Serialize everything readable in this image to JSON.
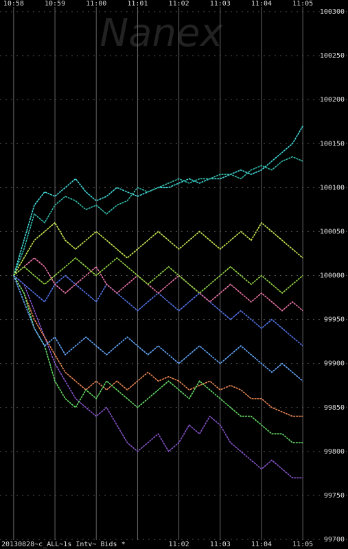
{
  "chart_data": {
    "type": "line",
    "watermark": "Nanex",
    "caption": "20130828~c_ALL~1s Intv~ Bids *",
    "x": [
      658,
      658.25,
      658.5,
      658.75,
      659,
      659.25,
      659.5,
      659.75,
      660,
      660.25,
      660.5,
      660.75,
      661,
      661.25,
      661.5,
      661.75,
      662,
      662.25,
      662.5,
      662.75,
      663,
      663.25,
      663.5,
      663.75,
      664,
      664.25,
      664.5,
      664.75,
      665
    ],
    "xlim": [
      657.67,
      665.23
    ],
    "xticks": [
      {
        "value": 658,
        "label": "10:58"
      },
      {
        "value": 659,
        "label": "10:59"
      },
      {
        "value": 660,
        "label": "11:00"
      },
      {
        "value": 661,
        "label": "11:01"
      },
      {
        "value": 662,
        "label": "11:02"
      },
      {
        "value": 663,
        "label": "11:03"
      },
      {
        "value": 664,
        "label": "11:04"
      },
      {
        "value": 665,
        "label": "11:05"
      }
    ],
    "ylim": [
      99700,
      100300
    ],
    "yticks": [
      99700,
      99750,
      99800,
      99850,
      99900,
      99950,
      100000,
      100050,
      100100,
      100150,
      100200,
      100250,
      100300
    ],
    "grid": true,
    "series": [
      {
        "color": "#44dddd",
        "values": [
          100000,
          100040,
          100080,
          100095,
          100090,
          100100,
          100110,
          100095,
          100085,
          100090,
          100100,
          100095,
          100090,
          100095,
          100100,
          100100,
          100105,
          100110,
          100105,
          100110,
          100110,
          100115,
          100120,
          100115,
          100120,
          100130,
          100140,
          100150,
          100170
        ]
      },
      {
        "color": "#33bbaa",
        "values": [
          100000,
          100030,
          100070,
          100060,
          100080,
          100090,
          100085,
          100075,
          100080,
          100070,
          100080,
          100085,
          100100,
          100095,
          100100,
          100105,
          100110,
          100105,
          100110,
          100110,
          100115,
          100115,
          100110,
          100120,
          100125,
          100120,
          100130,
          100135,
          100130
        ]
      },
      {
        "color": "#8855cc",
        "values": [
          100000,
          99990,
          99960,
          99930,
          99900,
          99880,
          99860,
          99850,
          99840,
          99850,
          99830,
          99810,
          99800,
          99810,
          99820,
          99800,
          99810,
          99830,
          99820,
          99840,
          99830,
          99810,
          99800,
          99790,
          99780,
          99790,
          99780,
          99770,
          99770
        ]
      },
      {
        "color": "#ee8855",
        "values": [
          100000,
          99980,
          99950,
          99930,
          99910,
          99890,
          99880,
          99870,
          99880,
          99870,
          99880,
          99870,
          99880,
          99890,
          99880,
          99885,
          99880,
          99870,
          99875,
          99880,
          99870,
          99875,
          99870,
          99860,
          99860,
          99850,
          99845,
          99840,
          99840
        ]
      },
      {
        "color": "#ccee55",
        "values": [
          100000,
          100020,
          100040,
          100050,
          100060,
          100040,
          100030,
          100040,
          100050,
          100040,
          100030,
          100020,
          100030,
          100040,
          100050,
          100040,
          100030,
          100040,
          100050,
          100040,
          100030,
          100040,
          100050,
          100040,
          100060,
          100050,
          100040,
          100030,
          100020
        ]
      },
      {
        "color": "#5577ee",
        "values": [
          100000,
          99990,
          99980,
          99970,
          99990,
          100000,
          99990,
          99980,
          99970,
          99990,
          99980,
          99970,
          99960,
          99970,
          99980,
          99970,
          99960,
          99970,
          99980,
          99970,
          99960,
          99950,
          99960,
          99950,
          99940,
          99950,
          99940,
          99930,
          99920
        ]
      },
      {
        "color": "#66dd66",
        "values": [
          100000,
          99980,
          99940,
          99920,
          99880,
          99860,
          99850,
          99870,
          99860,
          99880,
          99870,
          99860,
          99850,
          99860,
          99870,
          99880,
          99870,
          99860,
          99880,
          99870,
          99860,
          99850,
          99840,
          99840,
          99830,
          99820,
          99820,
          99810,
          99810
        ]
      },
      {
        "color": "#ee77aa",
        "values": [
          100000,
          100010,
          100020,
          100010,
          99990,
          99980,
          99990,
          100000,
          100010,
          99990,
          99980,
          99990,
          100000,
          99990,
          99980,
          99990,
          100000,
          99990,
          99980,
          99970,
          99980,
          99990,
          99980,
          99970,
          99980,
          99970,
          99960,
          99970,
          99960
        ]
      },
      {
        "color": "#99dd44",
        "values": [
          100000,
          100010,
          100000,
          99990,
          100000,
          100010,
          100020,
          100010,
          100000,
          100010,
          100020,
          100010,
          100000,
          99990,
          100000,
          100010,
          100000,
          99990,
          99980,
          99990,
          100000,
          100010,
          100000,
          99990,
          100000,
          99990,
          99980,
          99990,
          100000
        ]
      },
      {
        "color": "#66aaff",
        "values": [
          100000,
          99970,
          99940,
          99920,
          99930,
          99910,
          99920,
          99930,
          99920,
          99910,
          99920,
          99930,
          99920,
          99910,
          99920,
          99910,
          99900,
          99910,
          99920,
          99910,
          99900,
          99910,
          99920,
          99910,
          99900,
          99890,
          99900,
          99890,
          99880
        ]
      }
    ]
  }
}
